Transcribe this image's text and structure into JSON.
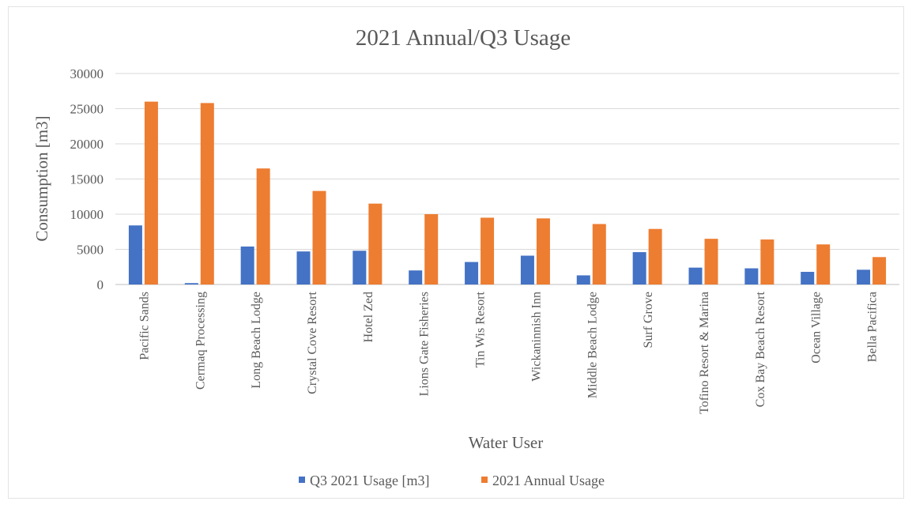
{
  "chart_data": {
    "type": "bar",
    "title": "2021 Annual/Q3 Usage",
    "xlabel": "Water User",
    "ylabel": "Consumption [m3]",
    "ylim": [
      0,
      30000
    ],
    "yticks": [
      0,
      5000,
      10000,
      15000,
      20000,
      25000,
      30000
    ],
    "yticks_labels": [
      "0",
      "5000",
      "10000",
      "15000",
      "20000",
      "25000",
      "30000"
    ],
    "grid": true,
    "legend_position": "bottom",
    "categories": [
      "Pacific Sands",
      "Cermaq Processing",
      "Long Beach Lodge",
      "Crystal Cove Resort",
      "Hotel Zed",
      "Lions Gate Fisheries",
      "Tin Wis Resort",
      "Wickaninnish Inn",
      "Middle Beach Lodge",
      "Surf Grove",
      "Tofino Resort & Marina",
      "Cox Bay Beach Resort",
      "Ocean Village",
      "Bella Pacifica"
    ],
    "series": [
      {
        "name": "Q3 2021 Usage [m3]",
        "color": "#4472c4",
        "values": [
          8400,
          200,
          5400,
          4700,
          4800,
          2000,
          3200,
          4100,
          1300,
          4600,
          2400,
          2300,
          1800,
          2100
        ]
      },
      {
        "name": "2021 Annual Usage",
        "color": "#ed7d31",
        "values": [
          26000,
          25800,
          16500,
          13300,
          11500,
          10000,
          9500,
          9400,
          8600,
          7900,
          6500,
          6400,
          5700,
          3900
        ]
      }
    ]
  }
}
